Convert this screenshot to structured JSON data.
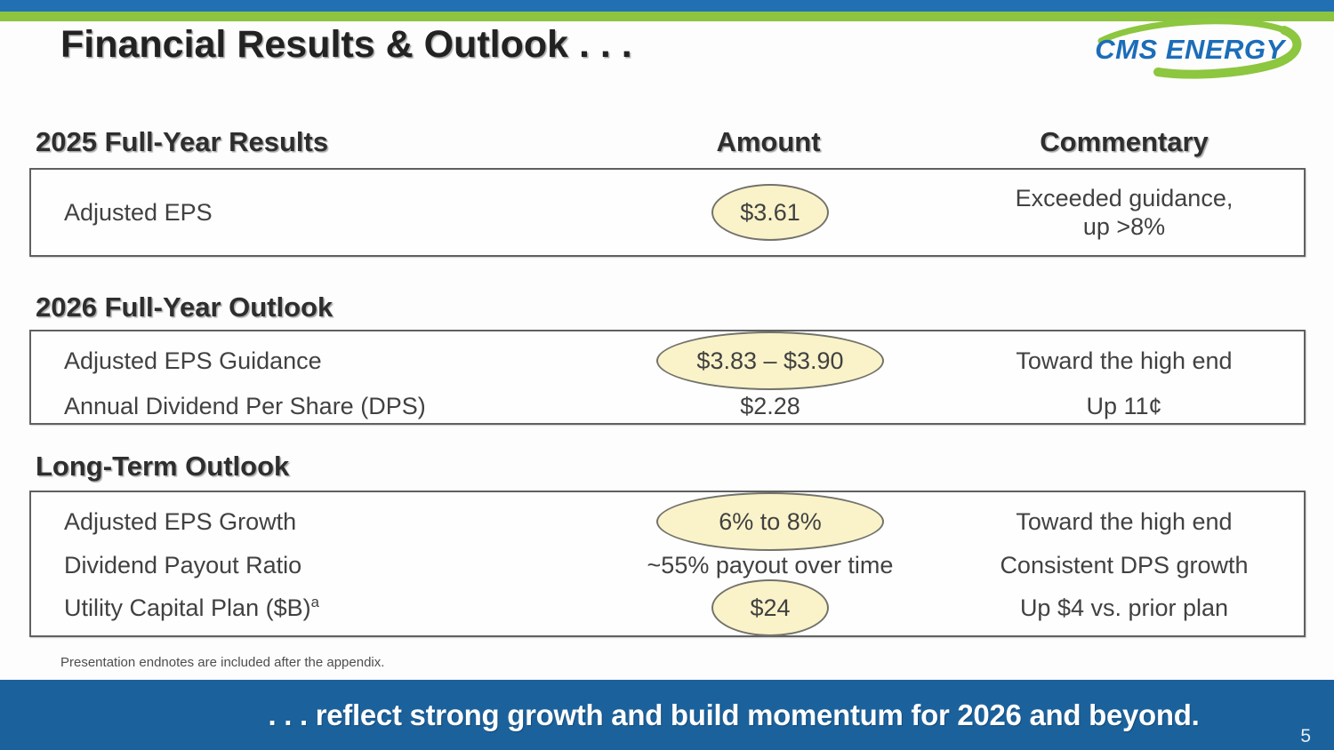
{
  "slide": {
    "title": "Financial Results & Outlook . . .",
    "logo_text": "CMS ENERGY",
    "columns": {
      "amount": "Amount",
      "commentary": "Commentary"
    },
    "sections": [
      {
        "heading": "2025 Full-Year Results",
        "rows": [
          {
            "label": "Adjusted EPS",
            "amount": "$3.61",
            "highlight": "small",
            "commentary": "Exceeded guidance,\nup >8%"
          }
        ]
      },
      {
        "heading": "2026 Full-Year Outlook",
        "rows": [
          {
            "label": "Adjusted EPS Guidance",
            "amount": "$3.83 – $3.90",
            "highlight": "wide",
            "commentary": "Toward the high end"
          },
          {
            "label": "Annual Dividend Per Share (DPS)",
            "amount": "$2.28",
            "highlight": null,
            "commentary": "Up 11¢"
          }
        ]
      },
      {
        "heading": "Long-Term Outlook",
        "rows": [
          {
            "label": "Adjusted EPS Growth",
            "amount": "6% to 8%",
            "highlight": "wide",
            "commentary": "Toward the high end"
          },
          {
            "label": "Dividend Payout Ratio",
            "amount": "~55% payout over time",
            "highlight": null,
            "commentary": "Consistent DPS growth"
          },
          {
            "label": "Utility Capital Plan ($B)",
            "label_sup": "a",
            "amount": "$24",
            "highlight": "small",
            "commentary": "Up $4 vs. prior plan"
          }
        ]
      }
    ],
    "footnote": "Presentation endnotes are included after the appendix.",
    "banner": ". . . reflect strong growth and build momentum for 2026 and beyond.",
    "page_number": "5",
    "colors": {
      "top_bar_blue": "#2170b4",
      "top_bar_green": "#8cc440",
      "bottom_bar_blue": "#1b629d",
      "highlight_fill": "#faf3c9",
      "logo_blue": "#1b6db8",
      "logo_green": "#8dc63f"
    }
  }
}
